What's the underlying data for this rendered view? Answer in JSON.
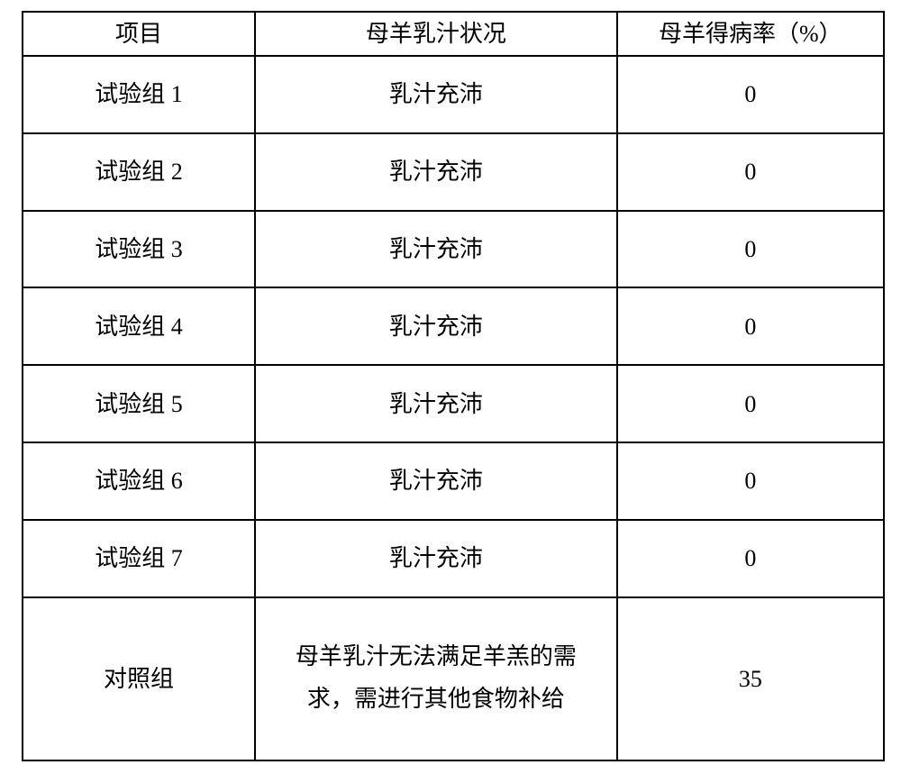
{
  "table": {
    "border_color": "#000000",
    "background_color": "#ffffff",
    "font_family": "SimSun",
    "font_size_pt": 20,
    "columns": [
      {
        "key": "item",
        "label": "项目"
      },
      {
        "key": "status",
        "label": "母羊乳汁状况"
      },
      {
        "key": "rate",
        "label": "母羊得病率（%）"
      }
    ],
    "rows": [
      {
        "item": "试验组 1",
        "status": "乳汁充沛",
        "rate": "0"
      },
      {
        "item": "试验组 2",
        "status": "乳汁充沛",
        "rate": "0"
      },
      {
        "item": "试验组 3",
        "status": "乳汁充沛",
        "rate": "0"
      },
      {
        "item": "试验组 4",
        "status": "乳汁充沛",
        "rate": "0"
      },
      {
        "item": "试验组 5",
        "status": "乳汁充沛",
        "rate": "0"
      },
      {
        "item": "试验组 6",
        "status": "乳汁充沛",
        "rate": "0"
      },
      {
        "item": "试验组 7",
        "status": "乳汁充沛",
        "rate": "0"
      },
      {
        "item": "对照组",
        "status": "母羊乳汁无法满足羊羔的需\n求，需进行其他食物补给",
        "rate": "35"
      }
    ]
  }
}
